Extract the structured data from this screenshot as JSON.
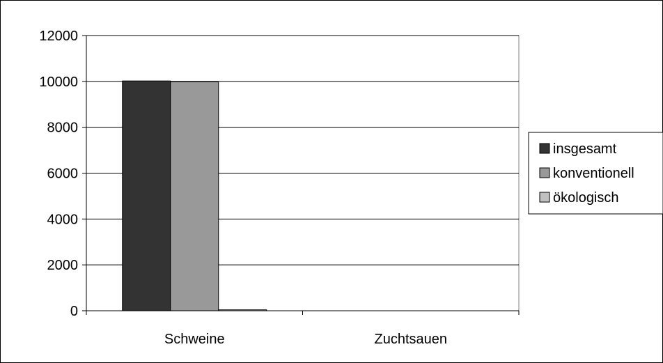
{
  "chart_data": {
    "type": "bar",
    "categories": [
      "Schweine",
      "Zuchtsauen"
    ],
    "series": [
      {
        "name": "insgesamt",
        "values": [
          10020,
          0
        ],
        "color": "#333333"
      },
      {
        "name": "konventionell",
        "values": [
          9980,
          0
        ],
        "color": "#999999"
      },
      {
        "name": "ökologisch",
        "values": [
          40,
          0
        ],
        "color": "#c0c0c0"
      }
    ],
    "ylim": [
      0,
      12000
    ],
    "yticks": [
      0,
      2000,
      4000,
      6000,
      8000,
      10000,
      12000
    ],
    "grid": true,
    "legend_position": "right"
  }
}
